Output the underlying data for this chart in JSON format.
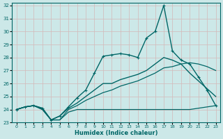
{
  "background_color": "#cce8e8",
  "grid_color": "#c8d8d8",
  "line_color": "#006666",
  "xlabel": "Humidex (Indice chaleur)",
  "xlim": [
    -0.5,
    23.5
  ],
  "ylim": [
    23,
    32.2
  ],
  "yticks": [
    23,
    24,
    25,
    26,
    27,
    28,
    29,
    30,
    31,
    32
  ],
  "xticks": [
    0,
    1,
    2,
    3,
    4,
    5,
    6,
    7,
    8,
    9,
    10,
    11,
    12,
    13,
    14,
    15,
    16,
    17,
    18,
    19,
    20,
    21,
    22,
    23
  ],
  "s0_y": [
    24.0,
    24.2,
    24.3,
    24.1,
    23.2,
    23.5,
    24.1,
    24.5,
    25.0,
    25.5,
    26.0,
    26.0,
    26.3,
    26.5,
    26.7,
    27.0,
    27.5,
    28.0,
    27.8,
    27.5,
    26.8,
    26.2,
    25.6,
    25.0
  ],
  "s1_y": [
    24.0,
    24.2,
    24.3,
    24.1,
    23.2,
    23.5,
    24.2,
    24.9,
    25.5,
    26.8,
    28.1,
    28.2,
    28.3,
    28.2,
    28.0,
    29.5,
    30.0,
    32.0,
    28.5,
    27.8,
    27.5,
    26.5,
    25.5,
    24.3
  ],
  "s2_y": [
    24.0,
    24.2,
    24.3,
    24.0,
    23.2,
    23.2,
    24.0,
    24.3,
    24.7,
    25.0,
    25.3,
    25.5,
    25.8,
    26.0,
    26.2,
    26.5,
    26.8,
    27.2,
    27.3,
    27.5,
    27.6,
    27.5,
    27.3,
    27.0
  ],
  "s3_y": [
    24.0,
    24.2,
    24.3,
    24.0,
    23.2,
    23.2,
    23.8,
    24.0,
    24.0,
    24.0,
    24.0,
    24.0,
    24.0,
    24.0,
    24.0,
    24.0,
    24.0,
    24.0,
    24.0,
    24.0,
    24.0,
    24.1,
    24.2,
    24.3
  ]
}
